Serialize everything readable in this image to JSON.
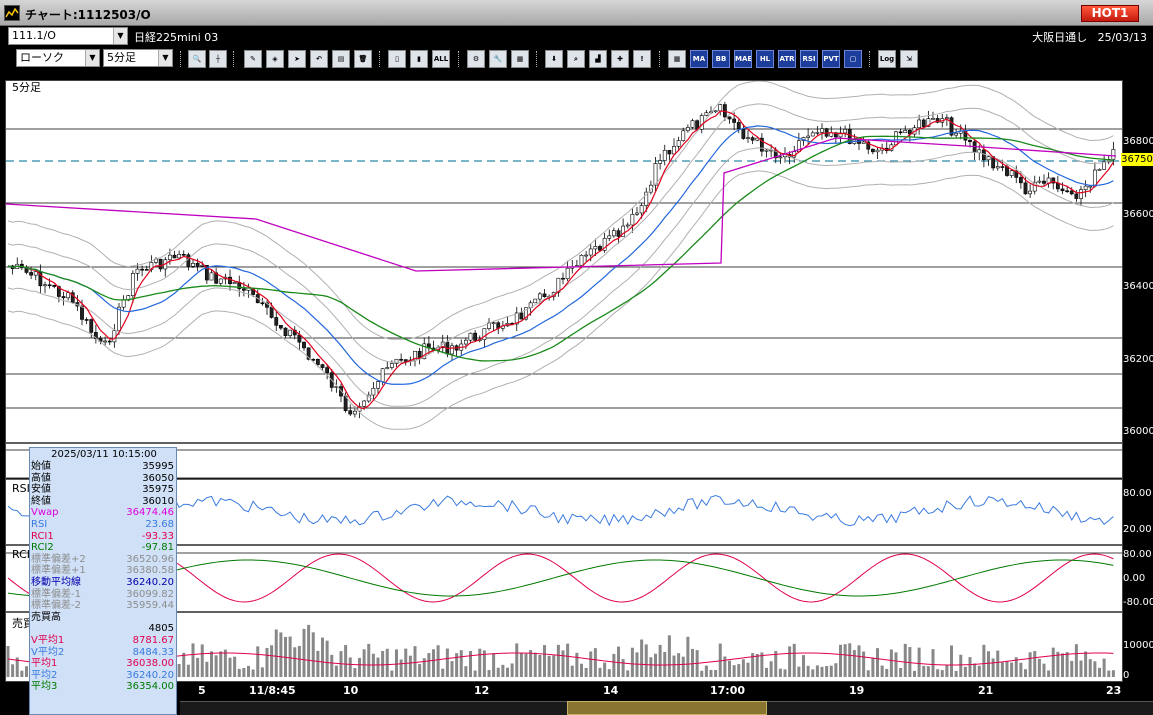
{
  "window": {
    "title": "チャート:1112503/O",
    "hot_label": "HOT1"
  },
  "topbar": {
    "symbol": "111.1/O",
    "name": "日経225mini 03",
    "exchange": "大阪日通し",
    "date": "25/03/13"
  },
  "toolbar": {
    "chart_type": "ローソク",
    "period": "5分足",
    "icon_labels": {
      "all": "ALL",
      "ma": "MA",
      "bb": "BB",
      "mae": "MAE",
      "hl": "HL",
      "atr": "ATR",
      "rsi": "RSI",
      "pvt": "PVT",
      "log": "Log"
    }
  },
  "panels": {
    "price": "5分足",
    "rsi": "RSI",
    "rci": "RCI",
    "volume": "売買高"
  },
  "yaxis": {
    "price": [
      "36800",
      "36600",
      "36400",
      "36200",
      "36000"
    ],
    "rsi": [
      "80.00",
      "20.00"
    ],
    "rci": [
      "80.00",
      "0.00",
      "-80.00"
    ],
    "volume": [
      "10000",
      "0"
    ]
  },
  "price_tag": "36750",
  "xaxis": [
    "5",
    "11/8:45",
    "10",
    "12",
    "14",
    "17:00",
    "19",
    "21",
    "23"
  ],
  "info": {
    "timestamp": "2025/03/11  10:15:00",
    "rows": [
      {
        "k": "始値",
        "v": "35995",
        "color": "#000000"
      },
      {
        "k": "高値",
        "v": "36050",
        "color": "#000000"
      },
      {
        "k": "安値",
        "v": "35975",
        "color": "#000000"
      },
      {
        "k": "終値",
        "v": "36010",
        "color": "#000000"
      },
      {
        "k": "Vwap",
        "v": "36474.46",
        "color": "#e000e0"
      },
      {
        "k": "RSI",
        "v": "23.68",
        "color": "#3a7be0"
      },
      {
        "k": "RCI1",
        "v": "-93.33",
        "color": "#e0004f"
      },
      {
        "k": "RCI2",
        "v": "-97.81",
        "color": "#007a00"
      },
      {
        "k": "標準偏差+2",
        "v": "36520.96",
        "color": "#8d8d8d"
      },
      {
        "k": "標準偏差+1",
        "v": "36380.58",
        "color": "#8d8d8d"
      },
      {
        "k": "移動平均線",
        "v": "36240.20",
        "color": "#0000aa"
      },
      {
        "k": "標準偏差-1",
        "v": "36099.82",
        "color": "#8d8d8d"
      },
      {
        "k": "標準偏差-2",
        "v": "35959.44",
        "color": "#8d8d8d"
      },
      {
        "k": "売買高",
        "v": "",
        "color": "#000000"
      },
      {
        "k": "",
        "v": "4805",
        "color": "#000000"
      },
      {
        "k": "V平均1",
        "v": "8781.67",
        "color": "#e0004f"
      },
      {
        "k": "V平均2",
        "v": "8484.33",
        "color": "#3a7be0"
      },
      {
        "k": "平均1",
        "v": "36038.00",
        "color": "#e0004f"
      },
      {
        "k": "平均2",
        "v": "36240.20",
        "color": "#3a7be0"
      },
      {
        "k": "平均3",
        "v": "36354.00",
        "color": "#007a00"
      }
    ]
  },
  "colors": {
    "candle_up": "#ffffff",
    "candle_down": "#222222",
    "ma1": "#e0001b",
    "ma2": "#2266dd",
    "ma3": "#1a8a1a",
    "vwap": "#c000c0",
    "band": "#b0b0b0"
  }
}
